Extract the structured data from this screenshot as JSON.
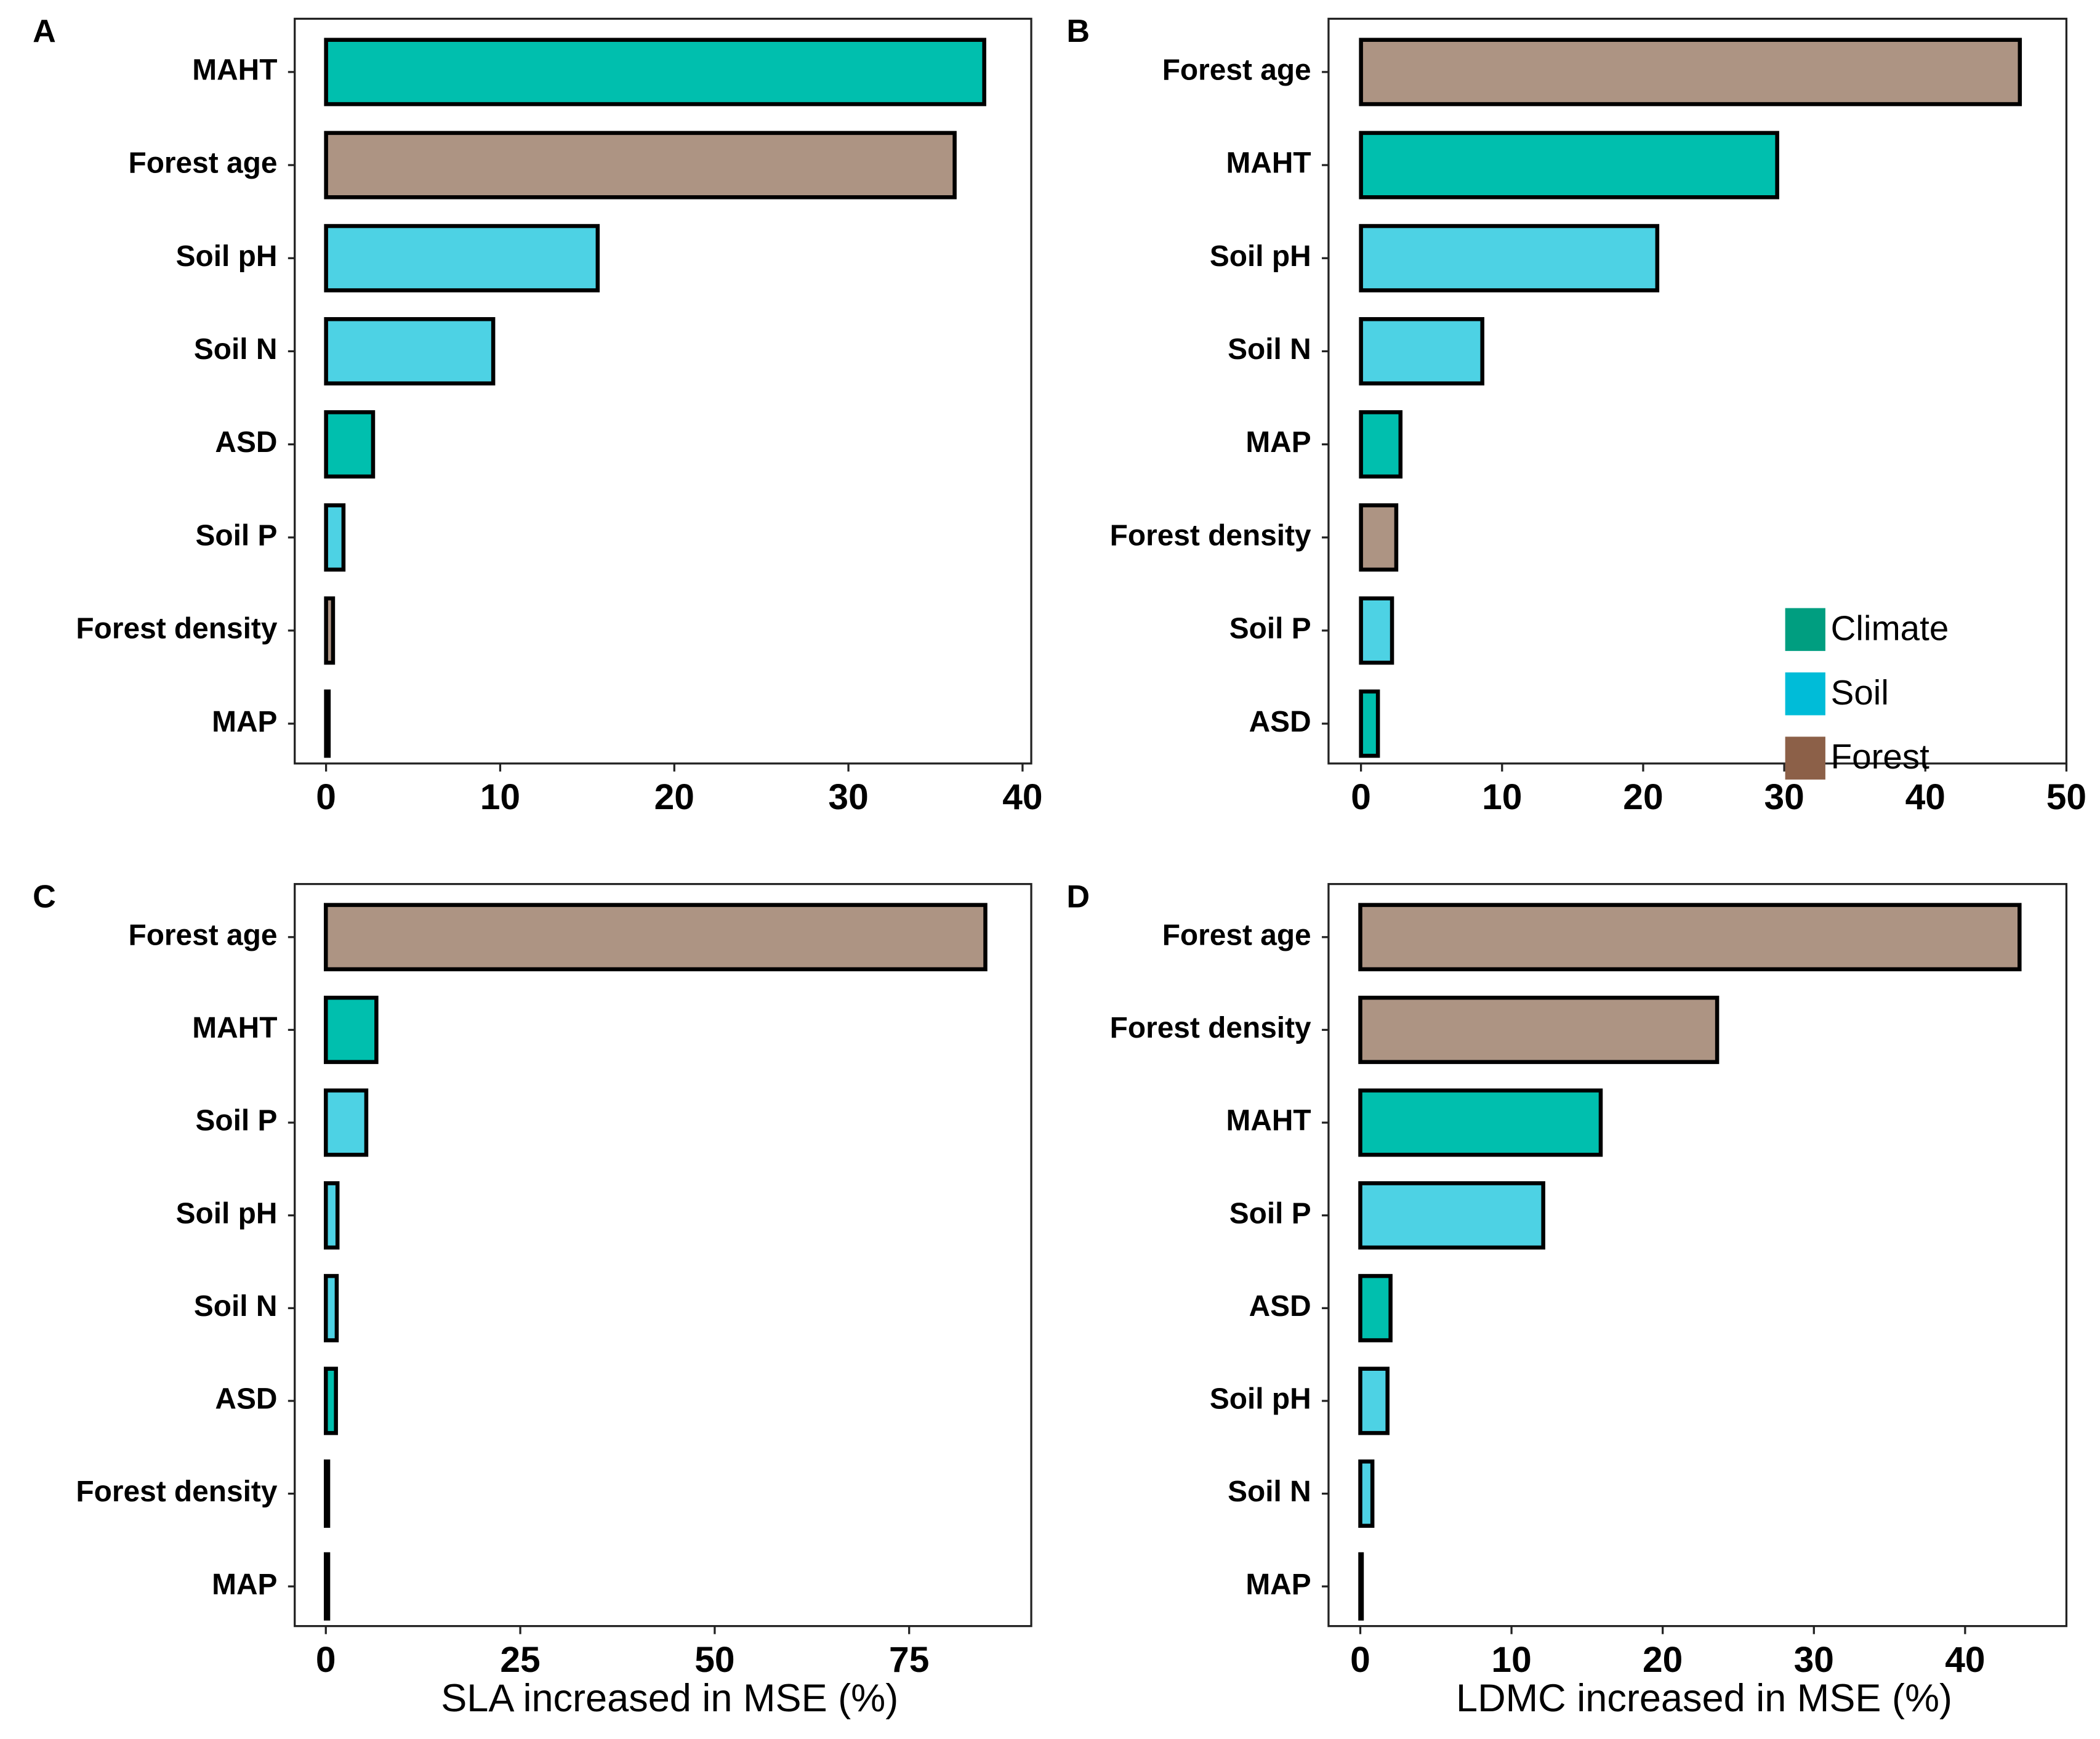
{
  "chart_data": [
    {
      "type": "bar",
      "orientation": "horizontal",
      "panel_label": "A",
      "categories": [
        "MAHT",
        "Forest age",
        "Soil pH",
        "Soil N",
        "ASD",
        "Soil P",
        "Forest density",
        "MAP"
      ],
      "values": [
        37.8,
        36.1,
        15.6,
        9.6,
        2.7,
        1.0,
        0.4,
        0.15
      ],
      "colors": [
        "#00bfae",
        "#ad9483",
        "#4dd2e4",
        "#4dd2e4",
        "#00bfae",
        "#4dd2e4",
        "#ad9483",
        "#00bfae"
      ],
      "xlim": [
        -1.8,
        40.5
      ],
      "xticks": [
        0,
        10,
        20,
        30,
        40
      ]
    },
    {
      "type": "bar",
      "orientation": "horizontal",
      "panel_label": "B",
      "categories": [
        "Forest age",
        "MAHT",
        "Soil pH",
        "Soil N",
        "MAP",
        "Forest density",
        "Soil P",
        "ASD"
      ],
      "values": [
        46.7,
        29.5,
        21.0,
        8.6,
        2.8,
        2.5,
        2.2,
        1.2
      ],
      "colors": [
        "#ad9483",
        "#00bfae",
        "#4dd2e4",
        "#4dd2e4",
        "#00bfae",
        "#ad9483",
        "#4dd2e4",
        "#00bfae"
      ],
      "xlim": [
        -2.3,
        50
      ],
      "xticks": [
        0,
        10,
        20,
        30,
        40,
        50
      ],
      "legend": {
        "position": "bottom-right",
        "entries": [
          {
            "name": "Climate",
            "color": "#009e80"
          },
          {
            "name": "Soil",
            "color": "#00bcd8"
          },
          {
            "name": "Forest",
            "color": "#8c6048"
          }
        ]
      }
    },
    {
      "type": "bar",
      "orientation": "horizontal",
      "panel_label": "C",
      "categories": [
        "Forest age",
        "MAHT",
        "Soil P",
        "Soil pH",
        "Soil N",
        "ASD",
        "Forest density",
        "MAP"
      ],
      "values": [
        84.8,
        6.5,
        5.2,
        1.5,
        1.4,
        1.3,
        0.3,
        0.3
      ],
      "colors": [
        "#ad9483",
        "#00bfae",
        "#4dd2e4",
        "#4dd2e4",
        "#4dd2e4",
        "#00bfae",
        "#ad9483",
        "#00bfae"
      ],
      "xlim": [
        -4.0,
        90.7
      ],
      "xticks": [
        0,
        25,
        50,
        75
      ],
      "x_label": "SLA increased in MSE (%)"
    },
    {
      "type": "bar",
      "orientation": "horizontal",
      "panel_label": "D",
      "categories": [
        "Forest age",
        "Forest density",
        "MAHT",
        "Soil P",
        "ASD",
        "Soil pH",
        "Soil N",
        "MAP"
      ],
      "values": [
        43.6,
        23.6,
        15.9,
        12.1,
        2.0,
        1.8,
        0.8,
        0.1
      ],
      "colors": [
        "#ad9483",
        "#ad9483",
        "#00bfae",
        "#4dd2e4",
        "#00bfae",
        "#4dd2e4",
        "#4dd2e4",
        "#00bfae"
      ],
      "xlim": [
        -2.1,
        46.7
      ],
      "xticks": [
        0,
        10,
        20,
        30,
        40
      ],
      "x_label": "LDMC increased in MSE (%)"
    }
  ]
}
